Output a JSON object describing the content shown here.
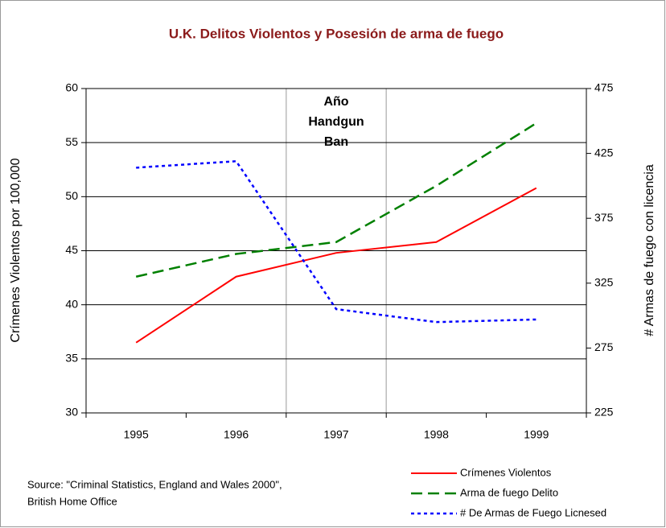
{
  "chart_data": {
    "type": "line",
    "title": "U.K. Delitos Violentos y Posesión de arma de fuego",
    "ylabel": "Crímenes Violentos por 100,000",
    "y2label": "# Armas de fuego con licencia",
    "categories": [
      "1995",
      "1996",
      "1997",
      "1998",
      "1999"
    ],
    "series": [
      {
        "name": "Crímenes Violentos",
        "color": "#ff0000",
        "dash": "solid",
        "values": [
          36.5,
          42.6,
          44.8,
          45.8,
          50.8
        ]
      },
      {
        "name": "Arma de fuego Delito",
        "color": "#008000",
        "dash": "dash",
        "values": [
          42.6,
          44.7,
          45.8,
          51,
          56.8
        ]
      },
      {
        "name": "# De Armas de Fuego Licnesed",
        "color": "#0000ff",
        "dash": "dot",
        "axis": "y2",
        "values": [
          414,
          419,
          305,
          295,
          297
        ]
      }
    ],
    "ylim": [
      30,
      60
    ],
    "yticks": [
      30,
      35,
      40,
      45,
      50,
      55,
      60
    ],
    "y2lim": [
      225,
      475
    ],
    "y2ticks": [
      225,
      275,
      325,
      375,
      425,
      475
    ],
    "grid": true,
    "legend": "lower right",
    "annotation": {
      "category": "1997",
      "lines": [
        "Año",
        "Handgun",
        "Ban"
      ]
    },
    "source": [
      "Source: \"Criminal Statistics, England and Wales 2000\",",
      "British Home Office"
    ]
  }
}
